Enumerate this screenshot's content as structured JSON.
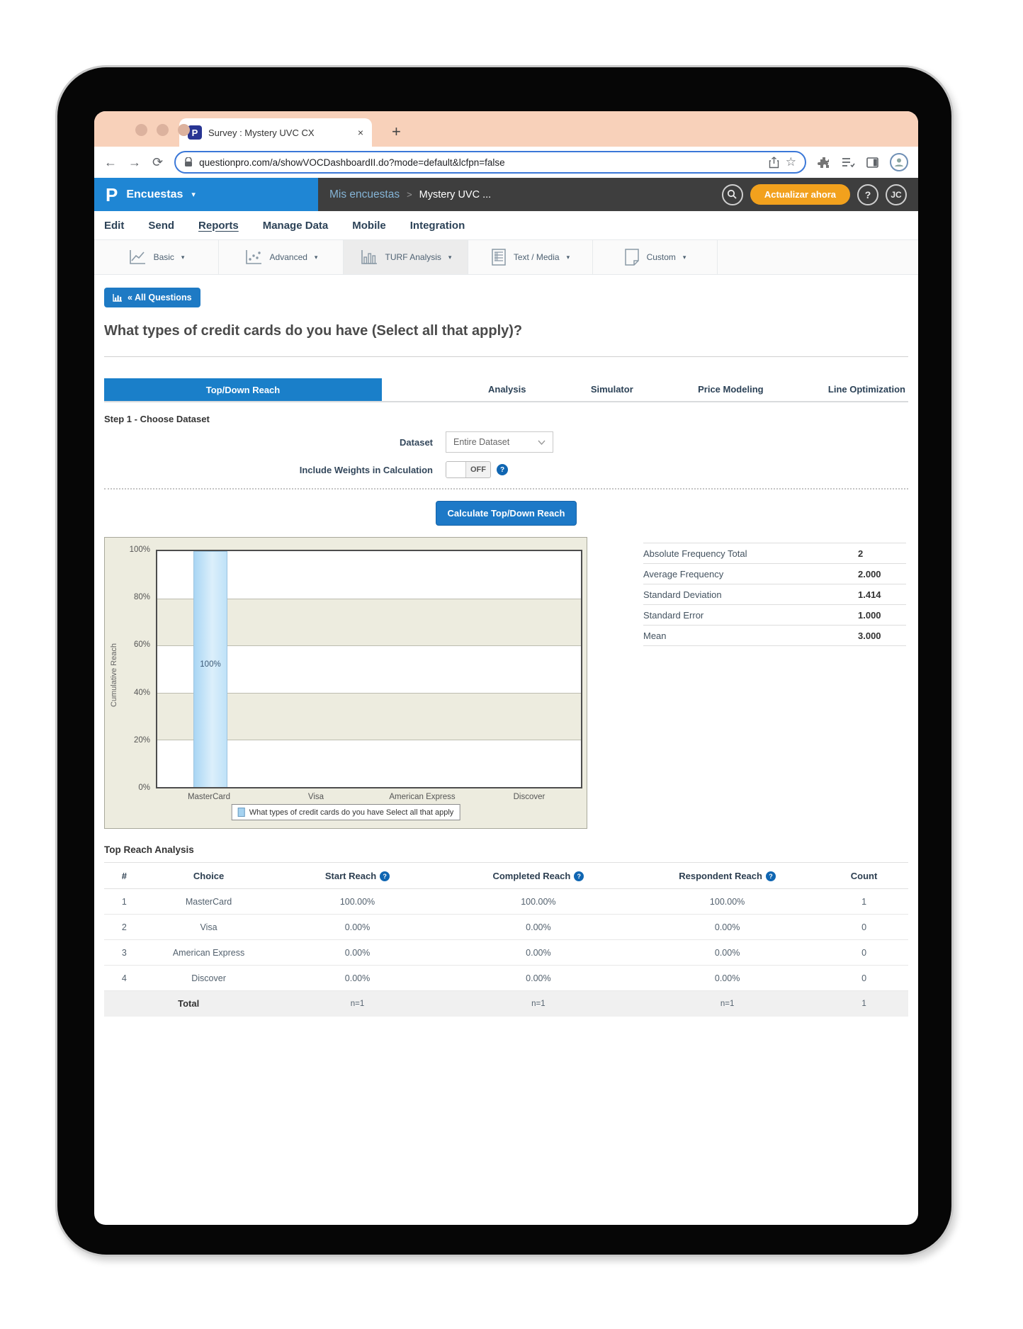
{
  "browser": {
    "tab_title": "Survey : Mystery UVC CX",
    "favicon_letter": "P",
    "close_glyph": "×",
    "newtab_glyph": "+",
    "back_glyph": "←",
    "forward_glyph": "→",
    "reload_glyph": "⟳",
    "star_glyph": "☆",
    "url": "questionpro.com/a/showVOCDashboardII.do?mode=default&lcfpn=false"
  },
  "header": {
    "logo_letter": "P",
    "product": "Encuestas",
    "product_caret": "▾",
    "breadcrumb_parent": "Mis encuestas",
    "breadcrumb_sep": ">",
    "breadcrumb_current": "Mystery UVC ...",
    "update_button": "Actualizar ahora",
    "help_label": "?",
    "avatar_initials": "JC"
  },
  "menu": {
    "items": [
      "Edit",
      "Send",
      "Reports",
      "Manage Data",
      "Mobile",
      "Integration"
    ],
    "active": "Reports"
  },
  "report_toolbar": {
    "caret": "▾",
    "items": [
      {
        "label": "Basic"
      },
      {
        "label": "Advanced"
      },
      {
        "label": "TURF Analysis"
      },
      {
        "label": "Text / Media"
      },
      {
        "label": "Custom"
      }
    ],
    "active": "TURF Analysis"
  },
  "question": {
    "back_button": "« All Questions",
    "title": "What types of credit cards do you have (Select all that apply)?"
  },
  "tabs": [
    "Top/Down Reach",
    "Analysis",
    "Simulator",
    "Price Modeling",
    "Line Optimization"
  ],
  "step1": {
    "heading": "Step 1 - Choose Dataset",
    "dataset_label": "Dataset",
    "dataset_value": "Entire Dataset",
    "weights_label": "Include Weights in Calculation",
    "weights_value": "OFF",
    "help_glyph": "?",
    "calculate_button": "Calculate Top/Down Reach"
  },
  "chart_data": {
    "type": "bar",
    "ylabel": "Cumulative Reach",
    "categories": [
      "MasterCard",
      "Visa",
      "American Express",
      "Discover"
    ],
    "values": [
      100,
      0,
      0,
      0
    ],
    "bar_labels": [
      "100%",
      "",
      "",
      ""
    ],
    "yticks": [
      "100%",
      "80%",
      "60%",
      "40%",
      "20%",
      "0%"
    ],
    "ylim": [
      0,
      100
    ],
    "grid": true,
    "legend": "What types of credit cards do you have Select all that apply",
    "bar_color": "#a9d6f4",
    "background": "#edecdf"
  },
  "stats": {
    "rows": [
      {
        "label": "Absolute Frequency Total",
        "value": "2"
      },
      {
        "label": "Average Frequency",
        "value": "2.000"
      },
      {
        "label": "Standard Deviation",
        "value": "1.414"
      },
      {
        "label": "Standard Error",
        "value": "1.000"
      },
      {
        "label": "Mean",
        "value": "3.000"
      }
    ]
  },
  "reach_table": {
    "heading": "Top Reach Analysis",
    "columns": [
      "#",
      "Choice",
      "Start Reach",
      "Completed Reach",
      "Respondent Reach",
      "Count"
    ],
    "help_glyph": "?",
    "rows": [
      [
        "1",
        "MasterCard",
        "100.00%",
        "100.00%",
        "100.00%",
        "1"
      ],
      [
        "2",
        "Visa",
        "0.00%",
        "0.00%",
        "0.00%",
        "0"
      ],
      [
        "3",
        "American Express",
        "0.00%",
        "0.00%",
        "0.00%",
        "0"
      ],
      [
        "4",
        "Discover",
        "0.00%",
        "0.00%",
        "0.00%",
        "0"
      ]
    ],
    "total_row": [
      "Total",
      "n=1",
      "n=1",
      "n=1",
      "1"
    ]
  }
}
